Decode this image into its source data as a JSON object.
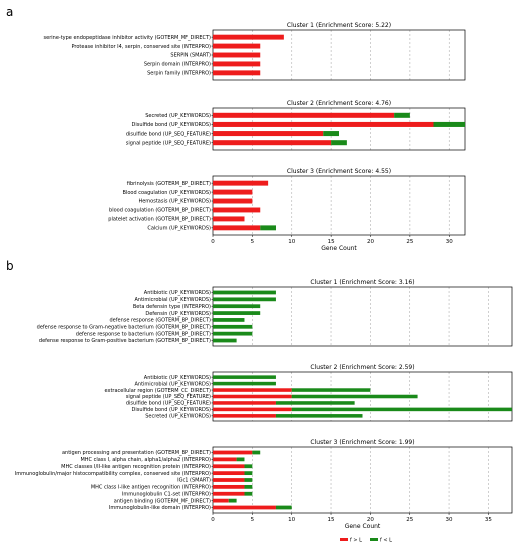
{
  "figure": {
    "panel_a_label": "a",
    "panel_b_label": "b",
    "legend": [
      {
        "name": "f > L",
        "color": "#ee1c1c"
      },
      {
        "name": "f < L",
        "color": "#1a8a1a"
      }
    ]
  },
  "colors": {
    "red": "#ee1c1c",
    "green": "#1a8a1a"
  },
  "chart_data": [
    {
      "type": "bar",
      "orientation": "horizontal",
      "stacked": true,
      "panel": "a",
      "title": "Cluster 1 (Enrichment Score: 5.22)",
      "xlabel": "",
      "xlim": [
        0,
        32
      ],
      "grid": "x-dashed",
      "categories": [
        "serine-type endopeptidase inhibitor activity (GOTERM_MF_DIRECT)",
        "Protease inhibitor I4, serpin, conserved site (INTERPRO)",
        "SERPIN (SMART)",
        "Serpin domain (INTERPRO)",
        "Serpin family (INTERPRO)"
      ],
      "series": [
        {
          "name": "f > L",
          "values": [
            9,
            6,
            6,
            6,
            6
          ]
        },
        {
          "name": "f < L",
          "values": [
            0,
            0,
            0,
            0,
            0
          ]
        }
      ]
    },
    {
      "type": "bar",
      "orientation": "horizontal",
      "stacked": true,
      "panel": "a",
      "title": "Cluster 2 (Enrichment Score: 4.76)",
      "xlabel": "",
      "xlim": [
        0,
        32
      ],
      "grid": "x-dashed",
      "categories": [
        "Secreted (UP_KEYWORDS)",
        "Disulfide bond (UP_KEYWORDS)",
        "disulfide bond (UP_SEQ_FEATURE)",
        "signal peptide (UP_SEQ_FEATURE)"
      ],
      "series": [
        {
          "name": "f > L",
          "values": [
            23,
            28,
            14,
            15
          ]
        },
        {
          "name": "f < L",
          "values": [
            2,
            4,
            2,
            2
          ]
        }
      ]
    },
    {
      "type": "bar",
      "orientation": "horizontal",
      "stacked": true,
      "panel": "a",
      "title": "Cluster 3 (Enrichment Score: 4.55)",
      "xlabel": "Gene Count",
      "xlim": [
        0,
        32
      ],
      "xticks": [
        0,
        5,
        10,
        15,
        20,
        25,
        30
      ],
      "grid": "x-dashed",
      "categories": [
        "fibrinolysis (GOTERM_BP_DIRECT)",
        "Blood coagulation (UP_KEYWORDS)",
        "Hemostasis (UP_KEYWORDS)",
        "blood coagulation (GOTERM_BP_DIRECT)",
        "platelet activation (GOTERM_BP_DIRECT)",
        "Calcium (UP_KEYWORDS)"
      ],
      "series": [
        {
          "name": "f > L",
          "values": [
            7,
            5,
            5,
            6,
            4,
            6
          ]
        },
        {
          "name": "f < L",
          "values": [
            0,
            0,
            0,
            0,
            0,
            2
          ]
        }
      ]
    },
    {
      "type": "bar",
      "orientation": "horizontal",
      "stacked": true,
      "panel": "b",
      "title": "Cluster 1 (Enrichment Score: 3.16)",
      "xlabel": "",
      "xlim": [
        0,
        38
      ],
      "grid": "x-dashed",
      "categories": [
        "Antibiotic (UP_KEYWORDS)",
        "Antimicrobial (UP_KEYWORDS)",
        "Beta defensin type (INTERPRO)",
        "Defensin (UP_KEYWORDS)",
        "defense response (GOTERM_BP_DIRECT)",
        "defense response to Gram-negative bacterium (GOTERM_BP_DIRECT)",
        "defense response to bacterium (GOTERM_BP_DIRECT)",
        "defense response to Gram-positive bacterium (GOTERM_BP_DIRECT)"
      ],
      "series": [
        {
          "name": "f > L",
          "values": [
            0,
            0,
            0,
            0,
            0,
            0,
            0,
            0
          ]
        },
        {
          "name": "f < L",
          "values": [
            8,
            8,
            6,
            6,
            4,
            5,
            5,
            3
          ]
        }
      ]
    },
    {
      "type": "bar",
      "orientation": "horizontal",
      "stacked": true,
      "panel": "b",
      "title": "Cluster 2 (Enrichment Score: 2.59)",
      "xlabel": "",
      "xlim": [
        0,
        38
      ],
      "grid": "x-dashed",
      "categories": [
        "Antibiotic (UP_KEYWORDS)",
        "Antimicrobial (UP_KEYWORDS)",
        "extracellular region (GOTERM_CC_DIRECT)",
        "signal peptide (UP_SEQ_FEATURE)",
        "disulfide bond (UP_SEQ_FEATURE)",
        "Disulfide bond (UP_KEYWORDS)",
        "Secreted (UP_KEYWORDS)"
      ],
      "series": [
        {
          "name": "f > L",
          "values": [
            0,
            0,
            10,
            10,
            8,
            10,
            8
          ]
        },
        {
          "name": "f < L",
          "values": [
            8,
            8,
            10,
            16,
            10,
            28,
            11
          ]
        }
      ]
    },
    {
      "type": "bar",
      "orientation": "horizontal",
      "stacked": true,
      "panel": "b",
      "title": "Cluster 3 (Enrichment Score: 1.99)",
      "xlabel": "Gene Count",
      "xlim": [
        0,
        38
      ],
      "xticks": [
        0,
        5,
        10,
        15,
        20,
        25,
        30,
        35
      ],
      "grid": "x-dashed",
      "categories": [
        "antigen processing and presentation (GOTERM_BP_DIRECT)",
        "MHC class I, alpha chain, alpha1/alpha2 (INTERPRO)",
        "MHC classes I/II-like antigen recognition protein (INTERPRO)",
        "Immunoglobulin/major histocompatibility complex, conserved site (INTERPRO)",
        "IGc1 (SMART)",
        "MHC class I-like antigen recognition (INTERPRO)",
        "Immunoglobulin C1-set (INTERPRO)",
        "antigen binding (GOTERM_MF_DIRECT)",
        "Immunoglobulin-like domain (INTERPRO)"
      ],
      "series": [
        {
          "name": "f > L",
          "values": [
            5,
            3,
            4,
            4,
            4,
            4,
            4,
            2,
            8
          ]
        },
        {
          "name": "f < L",
          "values": [
            1,
            1,
            1,
            1,
            1,
            1,
            1,
            1,
            2
          ]
        }
      ]
    }
  ]
}
